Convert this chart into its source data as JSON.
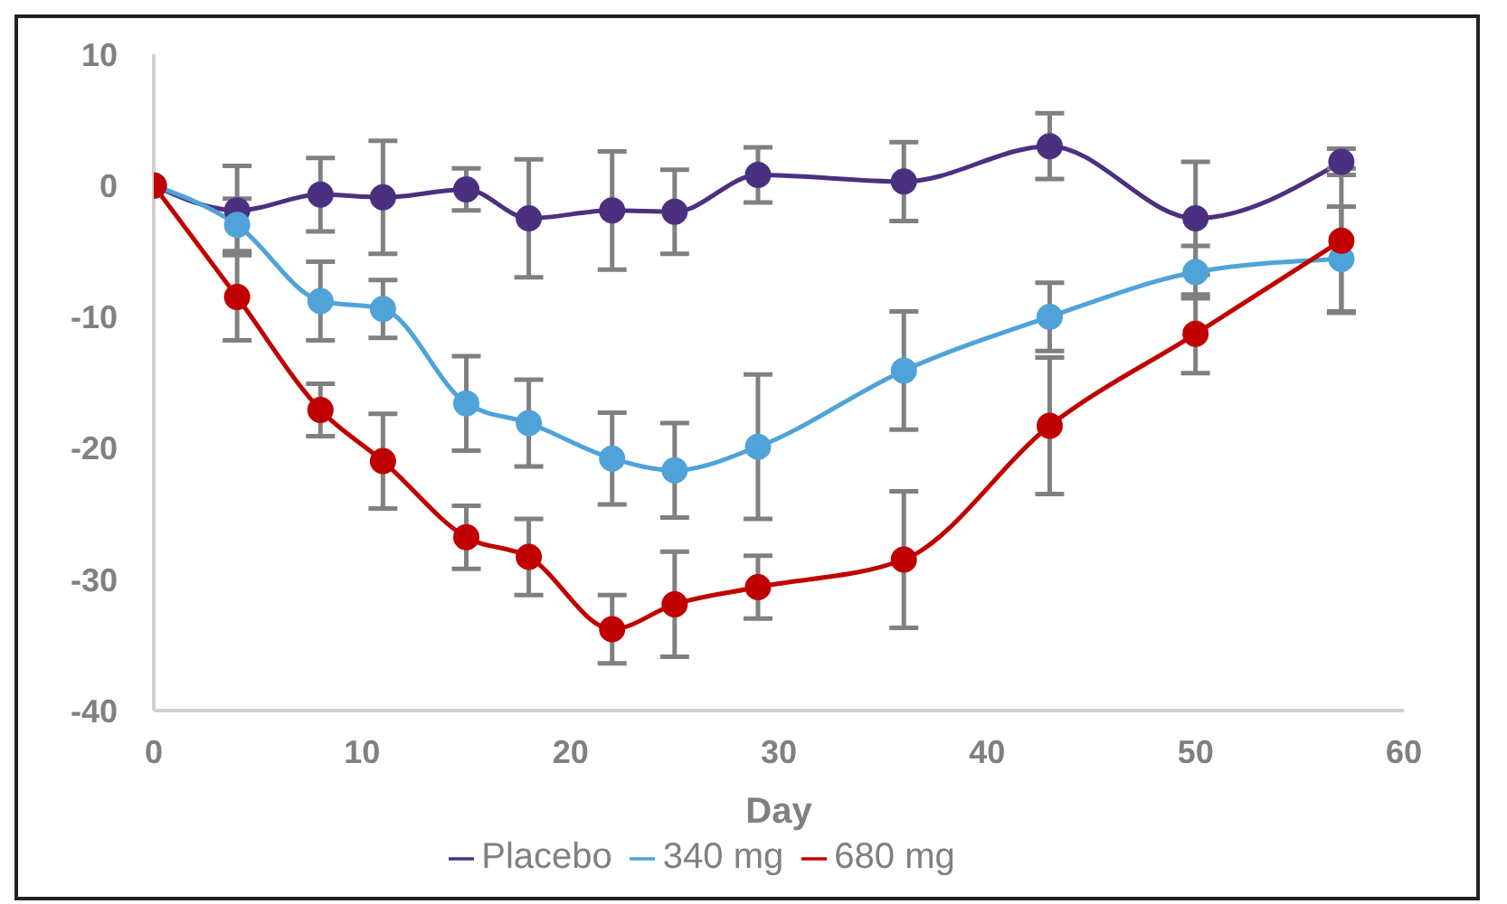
{
  "chart_data": {
    "type": "line",
    "xlabel": "Day",
    "x": [
      0,
      4,
      8,
      11,
      15,
      18,
      22,
      25,
      29,
      36,
      43,
      50,
      57
    ],
    "series": [
      {
        "name": "Placebo",
        "color": "#4b3080",
        "values": [
          0,
          -1.9,
          -0.7,
          -0.9,
          -0.3,
          -2.5,
          -1.9,
          -2,
          0.8,
          0.3,
          3,
          -2.5,
          1.8
        ],
        "errors": [
          0,
          3.4,
          2.8,
          4.3,
          1.6,
          4.5,
          4.5,
          3.2,
          2.1,
          3,
          2.5,
          4.3,
          1
        ]
      },
      {
        "name": "340 mg",
        "color": "#4fa3d9",
        "values": [
          0,
          -3,
          -8.8,
          -9.4,
          -16.6,
          -18.1,
          -20.8,
          -21.7,
          -19.9,
          -14.1,
          -10,
          -6.6,
          -5.6
        ],
        "errors": [
          0,
          2,
          3,
          2.2,
          3.6,
          3.3,
          3.5,
          3.6,
          5.5,
          4.5,
          2.6,
          2,
          4
        ]
      },
      {
        "name": "680 mg",
        "color": "#c00000",
        "values": [
          0,
          -8.5,
          -17.1,
          -21,
          -26.8,
          -28.3,
          -33.8,
          -31.9,
          -30.6,
          -28.5,
          -18.3,
          -11.3,
          -4.2
        ],
        "errors": [
          0,
          3.3,
          2,
          3.6,
          2.4,
          2.9,
          2.6,
          4,
          2.4,
          5.2,
          5.2,
          3,
          5.5
        ]
      }
    ],
    "xlim": [
      0,
      60
    ],
    "xticks": [
      0,
      10,
      20,
      30,
      40,
      50,
      60
    ],
    "ylim": [
      -40,
      10
    ],
    "yticks": [
      -40,
      -30,
      -20,
      -10,
      0,
      10
    ],
    "grid": false,
    "legend": "bottom",
    "marker": "circle",
    "line_style": "solid"
  }
}
